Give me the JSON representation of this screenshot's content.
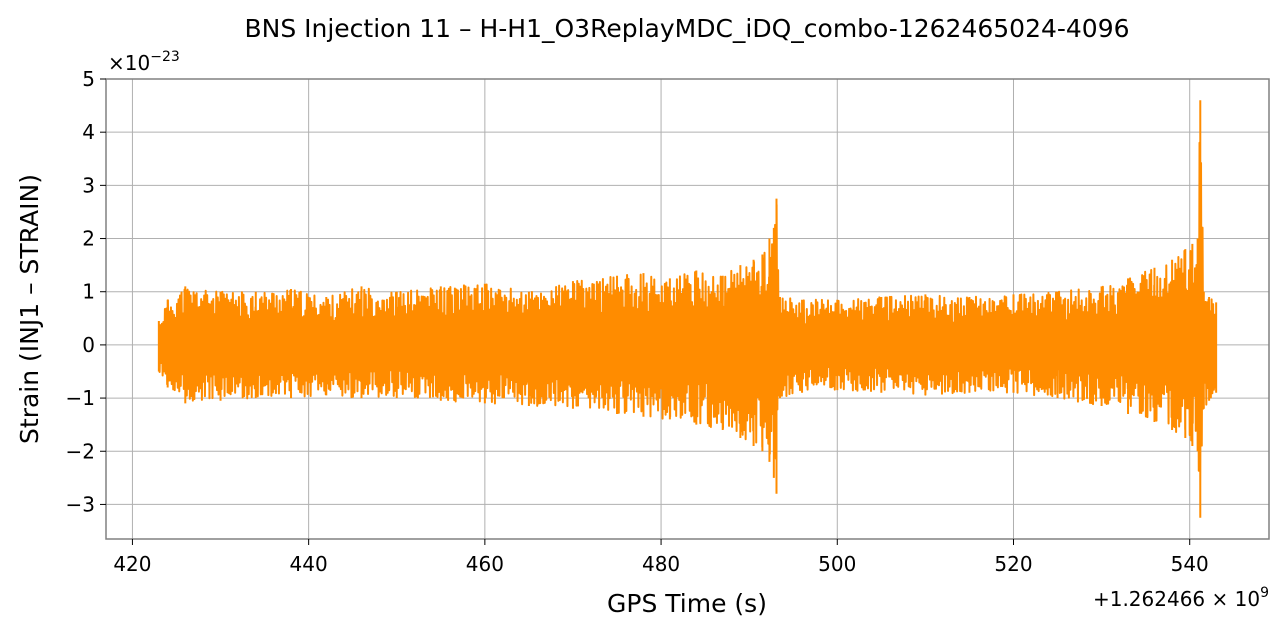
{
  "chart_data": {
    "type": "line",
    "title": "BNS Injection 11 – H-H1_O3ReplayMDC_iDQ_combo-1262465024-4096",
    "xlabel": "GPS Time (s)",
    "ylabel": "Strain (INJ1 – STRAIN)",
    "x_offset_label": "+1.262466 × 10",
    "x_offset_exp": "9",
    "y_scale_label": "×10",
    "y_scale_exp": "−23",
    "xlim": [
      417,
      549
    ],
    "ylim": [
      -3.65,
      5.0
    ],
    "xticks": [
      420,
      440,
      460,
      480,
      500,
      520,
      540
    ],
    "yticks": [
      -3,
      -2,
      -1,
      0,
      1,
      2,
      3,
      4,
      5
    ],
    "ytick_labels": [
      "−3",
      "−2",
      "−1",
      "0",
      "1",
      "2",
      "3",
      "4",
      "5"
    ],
    "grid": true,
    "series": [
      {
        "color": "#ff8c00",
        "envelope": {
          "x": [
            423.0,
            424.0,
            426.0,
            430.0,
            434.0,
            438.0,
            442.0,
            446.0,
            450.0,
            455.0,
            460.0,
            465.0,
            470.0,
            475.0,
            478.0,
            481.0,
            484.0,
            487.0,
            489.0,
            490.5,
            491.5,
            492.3,
            492.8,
            493.1,
            493.5,
            496.0,
            500.0,
            505.0,
            510.0,
            515.0,
            520.0,
            525.0,
            530.0,
            533.0,
            536.0,
            538.0,
            539.5,
            540.3,
            540.9,
            541.2,
            541.6,
            542.2,
            543.0
          ],
          "upper": [
            0.45,
            0.85,
            1.1,
            1.0,
            1.0,
            1.05,
            0.9,
            1.1,
            1.0,
            1.1,
            1.15,
            1.0,
            1.2,
            1.3,
            1.35,
            1.25,
            1.4,
            1.3,
            1.5,
            1.6,
            1.7,
            2.0,
            2.2,
            2.75,
            0.9,
            0.85,
            0.85,
            0.9,
            0.95,
            0.9,
            0.95,
            1.0,
            1.1,
            1.25,
            1.45,
            1.6,
            1.8,
            1.9,
            2.0,
            4.6,
            1.0,
            0.9,
            0.8
          ],
          "lower": [
            -0.5,
            -0.8,
            -1.1,
            -1.05,
            -1.0,
            -1.0,
            -0.95,
            -1.0,
            -1.0,
            -1.05,
            -1.1,
            -1.15,
            -1.2,
            -1.3,
            -1.35,
            -1.4,
            -1.5,
            -1.6,
            -1.75,
            -1.9,
            -2.0,
            -2.2,
            -2.5,
            -2.8,
            -1.0,
            -0.9,
            -0.85,
            -0.9,
            -0.95,
            -0.9,
            -0.9,
            -1.0,
            -1.15,
            -1.3,
            -1.45,
            -1.6,
            -1.75,
            -1.9,
            -2.0,
            -3.25,
            -1.2,
            -1.05,
            -0.9
          ]
        }
      }
    ]
  }
}
